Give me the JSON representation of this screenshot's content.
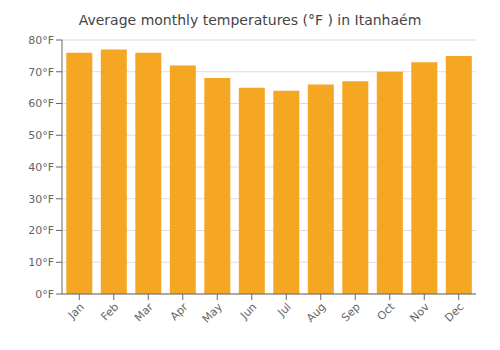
{
  "chart_data": {
    "type": "bar",
    "title": "Average monthly temperatures (°F ) in Itanhaém",
    "categories": [
      "Jan",
      "Feb",
      "Mar",
      "Apr",
      "May",
      "Jun",
      "Jul",
      "Aug",
      "Sep",
      "Oct",
      "Nov",
      "Dec"
    ],
    "values": [
      76,
      77,
      76,
      72,
      68,
      65,
      64,
      66,
      67,
      70,
      73,
      75
    ],
    "color": "#F5A623",
    "ylim": [
      0,
      80
    ],
    "yticks": [
      {
        "value": 0,
        "label": "0°F"
      },
      {
        "value": 10,
        "label": "10°F"
      },
      {
        "value": 20,
        "label": "20°F"
      },
      {
        "value": 30,
        "label": "30°F"
      },
      {
        "value": 40,
        "label": "40°F"
      },
      {
        "value": 50,
        "label": "50°F"
      },
      {
        "value": 60,
        "label": "60°F"
      },
      {
        "value": 70,
        "label": "70°F"
      },
      {
        "value": 80,
        "label": "80°F"
      }
    ],
    "grid": true
  }
}
